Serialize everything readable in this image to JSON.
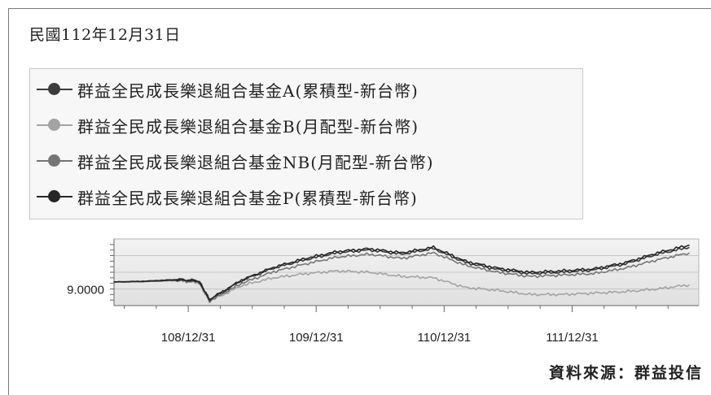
{
  "date_label": "民國112年12月31日",
  "source": "資料來源：群益投信",
  "colors": {
    "A": "#3c3c3c",
    "B": "#a3a3a3",
    "NB": "#757575",
    "P": "#262626"
  },
  "legend": [
    {
      "key": "A",
      "label": "群益全民成長樂退組合基金A(累積型-新台幣)"
    },
    {
      "key": "B",
      "label": "群益全民成長樂退組合基金B(月配型-新台幣)"
    },
    {
      "key": "NB",
      "label": "群益全民成長樂退組合基金NB(月配型-新台幣)"
    },
    {
      "key": "P",
      "label": "群益全民成長樂退組合基金P(累積型-新台幣)"
    }
  ],
  "chart_data": {
    "type": "line",
    "title": "",
    "xlabel": "",
    "ylabel": "",
    "y_tick_labels": [
      "9.0000"
    ],
    "x_tick_labels": [
      "108/12/31",
      "109/12/31",
      "110/12/31",
      "111/12/31"
    ],
    "x": [
      "108/06",
      "108/09",
      "108/12",
      "109/02",
      "109/03",
      "109/06",
      "109/09",
      "109/12",
      "110/03",
      "110/06",
      "110/09",
      "110/12",
      "111/03",
      "111/06",
      "111/09",
      "111/12",
      "112/03",
      "112/06",
      "112/09",
      "112/12"
    ],
    "series": [
      {
        "name": "群益全民成長樂退組合基金A(累積型-新台幣)",
        "values": [
          9.25,
          9.27,
          9.33,
          9.28,
          8.6,
          9.3,
          9.75,
          10.05,
          10.3,
          10.4,
          10.25,
          10.45,
          9.95,
          9.7,
          9.55,
          9.6,
          9.68,
          9.9,
          10.25,
          10.5
        ]
      },
      {
        "name": "群益全民成長樂退組合基金B(月配型-新台幣)",
        "values": [
          9.25,
          9.27,
          9.3,
          9.22,
          8.55,
          9.12,
          9.4,
          9.55,
          9.65,
          9.6,
          9.45,
          9.4,
          9.05,
          8.95,
          8.8,
          8.8,
          8.85,
          8.9,
          9.0,
          9.15
        ]
      },
      {
        "name": "群益全民成長樂退組合基金NB(月配型-新台幣)",
        "values": [
          9.25,
          9.27,
          9.31,
          9.24,
          8.57,
          9.2,
          9.62,
          9.9,
          10.15,
          10.25,
          10.1,
          10.3,
          9.85,
          9.6,
          9.45,
          9.5,
          9.55,
          9.75,
          10.05,
          10.3
        ]
      },
      {
        "name": "群益全民成長樂退組合基金P(累積型-新台幣)",
        "values": [
          9.25,
          9.28,
          9.34,
          9.29,
          8.62,
          9.32,
          9.78,
          10.1,
          10.35,
          10.45,
          10.3,
          10.5,
          10.0,
          9.75,
          9.6,
          9.65,
          9.72,
          9.95,
          10.3,
          10.58
        ]
      }
    ]
  }
}
